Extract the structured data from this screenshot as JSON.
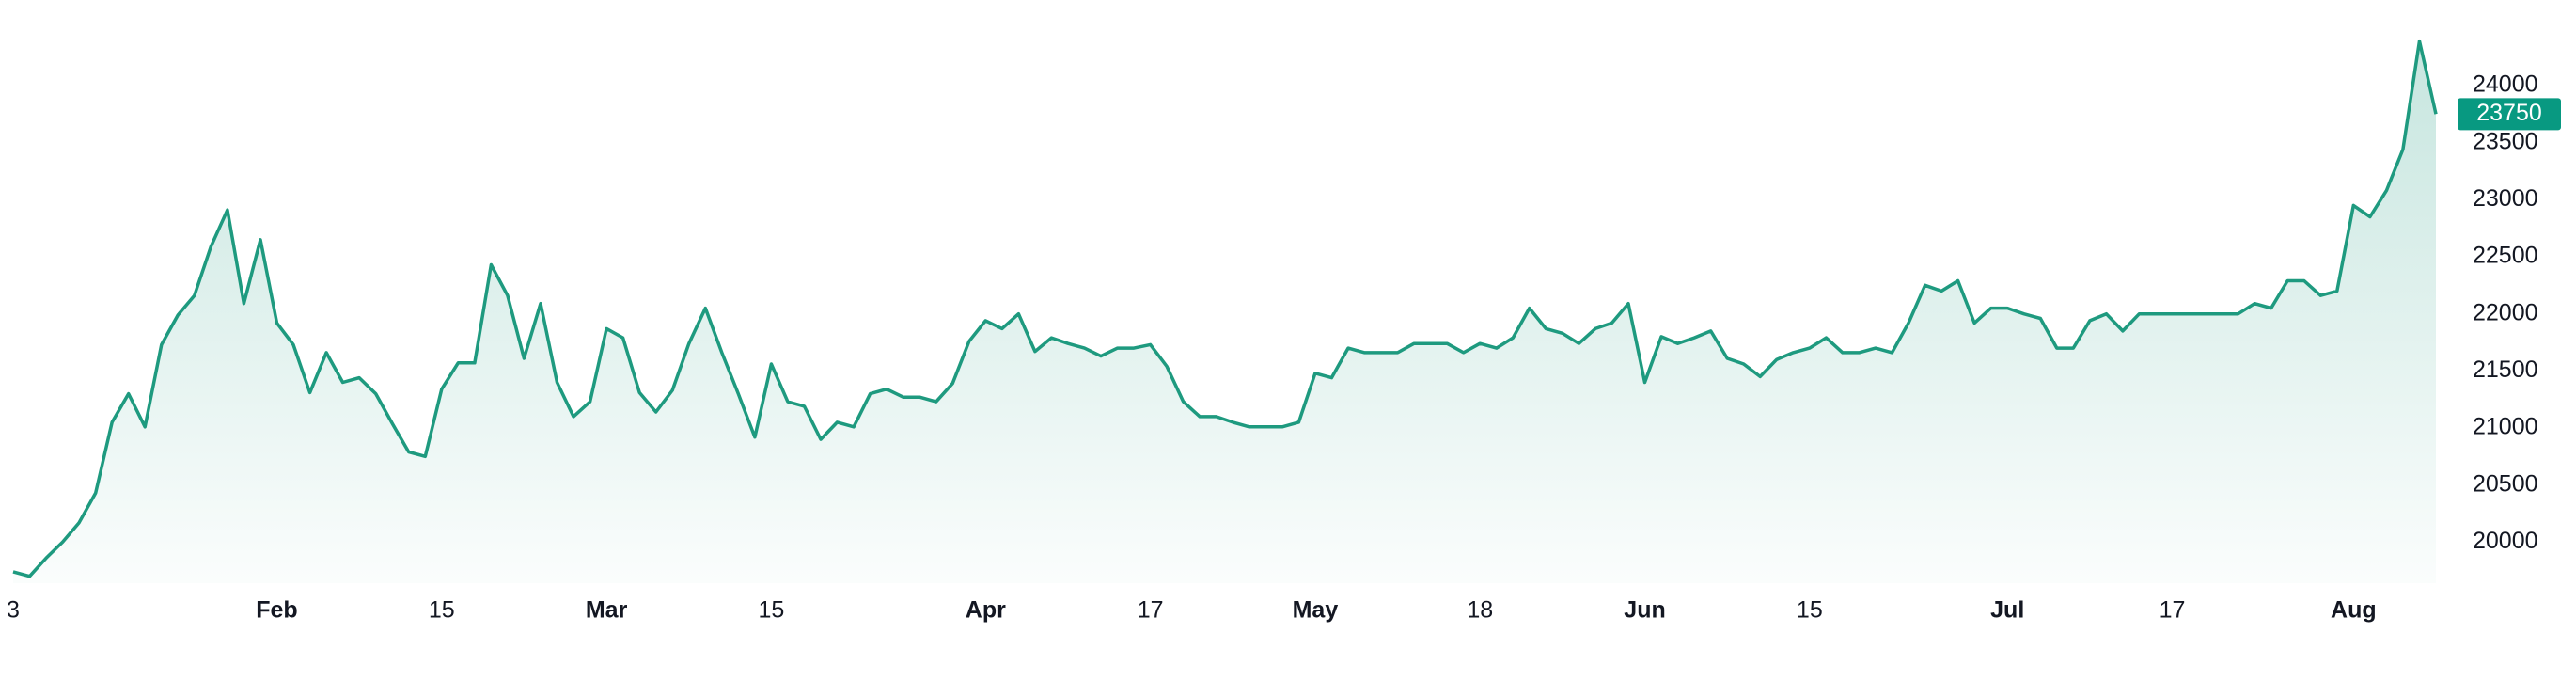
{
  "chart_data": {
    "type": "line",
    "categories": [
      "3",
      null,
      null,
      null,
      null,
      null,
      null,
      null,
      null,
      null,
      null,
      null,
      null,
      null,
      null,
      null,
      "Feb",
      null,
      null,
      null,
      null,
      null,
      null,
      null,
      null,
      null,
      "15",
      null,
      null,
      null,
      null,
      null,
      null,
      null,
      null,
      null,
      "Mar",
      null,
      null,
      null,
      null,
      null,
      null,
      null,
      null,
      null,
      "15",
      null,
      null,
      null,
      null,
      null,
      null,
      null,
      null,
      null,
      null,
      null,
      null,
      "Apr",
      null,
      null,
      null,
      null,
      null,
      null,
      null,
      null,
      null,
      "17",
      null,
      null,
      null,
      null,
      null,
      null,
      null,
      null,
      null,
      "May",
      null,
      null,
      null,
      null,
      null,
      null,
      null,
      null,
      null,
      "18",
      null,
      null,
      null,
      null,
      null,
      null,
      null,
      null,
      null,
      "Jun",
      null,
      null,
      null,
      null,
      null,
      null,
      null,
      null,
      null,
      "15",
      null,
      null,
      null,
      null,
      null,
      null,
      null,
      null,
      null,
      null,
      null,
      "Jul",
      null,
      null,
      null,
      null,
      null,
      null,
      null,
      null,
      null,
      "17",
      null,
      null,
      null,
      null,
      null,
      null,
      null,
      null,
      null,
      null,
      "Aug",
      null,
      null,
      null,
      null,
      null
    ],
    "values": [
      19740,
      19700,
      19860,
      20000,
      20170,
      20430,
      21050,
      21300,
      21010,
      21730,
      21990,
      22160,
      22590,
      22910,
      22090,
      22650,
      21920,
      21730,
      21310,
      21660,
      21400,
      21440,
      21300,
      21040,
      20790,
      20750,
      21340,
      21570,
      21570,
      22430,
      22160,
      21610,
      22090,
      21400,
      21100,
      21230,
      21870,
      21790,
      21310,
      21140,
      21330,
      21740,
      22050,
      21660,
      21300,
      20920,
      21560,
      21230,
      21190,
      20900,
      21050,
      21010,
      21300,
      21340,
      21270,
      21270,
      21230,
      21390,
      21760,
      21940,
      21870,
      22000,
      21670,
      21790,
      21740,
      21700,
      21630,
      21700,
      21700,
      21730,
      21540,
      21230,
      21100,
      21100,
      21050,
      21010,
      21010,
      21010,
      21050,
      21480,
      21440,
      21700,
      21660,
      21660,
      21660,
      21740,
      21740,
      21740,
      21660,
      21740,
      21700,
      21790,
      22050,
      21870,
      21830,
      21740,
      21870,
      21920,
      22090,
      21400,
      21800,
      21740,
      21790,
      21850,
      21610,
      21560,
      21450,
      21600,
      21660,
      21700,
      21790,
      21660,
      21660,
      21700,
      21660,
      21920,
      22250,
      22200,
      22290,
      21920,
      22050,
      22050,
      22000,
      21960,
      21700,
      21700,
      21940,
      22000,
      21850,
      22000,
      22000,
      22000,
      22000,
      22000,
      22000,
      22000,
      22090,
      22050,
      22290,
      22290,
      22160,
      22200,
      22950,
      22850,
      23080,
      23440,
      24390,
      23750
    ],
    "color": "#1e9a7f",
    "last_value": 23750,
    "ylim": [
      19640,
      24750
    ],
    "yticks": [
      20000,
      20500,
      21000,
      21500,
      22000,
      22500,
      23000,
      23500,
      24000
    ]
  }
}
